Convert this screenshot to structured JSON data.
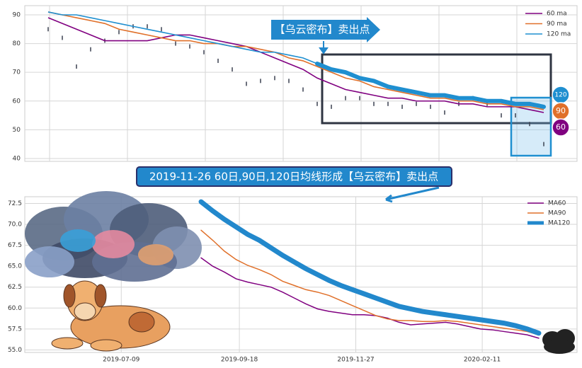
{
  "chart_data": [
    {
      "type": "line",
      "values": [
        85,
        82,
        72,
        78,
        81,
        84,
        86,
        86,
        85,
        80,
        79,
        77,
        74,
        71,
        66,
        67,
        68,
        67,
        64,
        59,
        58,
        61,
        61,
        59,
        59,
        58,
        59,
        58,
        56,
        59,
        61,
        59,
        55,
        55,
        52,
        45
      ],
      "color": "#3a4150",
      "series": [
        {
          "name": "60 ma",
          "color": "#800080",
          "values": [
            89,
            87,
            85,
            83,
            81,
            81,
            81,
            81,
            82,
            83,
            83,
            82,
            81,
            80,
            79,
            77,
            75,
            73,
            71,
            68,
            66,
            64,
            63,
            62,
            61,
            61,
            60,
            60,
            60,
            59,
            59,
            58,
            58,
            58,
            57,
            56
          ]
        },
        {
          "name": "90 ma",
          "color": "#e0702a",
          "values": [
            91,
            90,
            89,
            88,
            87,
            85,
            84,
            83,
            82,
            81,
            81,
            80,
            80,
            79,
            79,
            78,
            77,
            75,
            74,
            72,
            70,
            68,
            67,
            65,
            64,
            63,
            62,
            61,
            61,
            60,
            60,
            59,
            59,
            58,
            58,
            57
          ]
        },
        {
          "name": "120 ma",
          "color": "#1f8fd0",
          "values": [
            91,
            90,
            90,
            89,
            88,
            87,
            86,
            85,
            84,
            83,
            82,
            81,
            80,
            79,
            78,
            77,
            77,
            76,
            75,
            73,
            71,
            70,
            68,
            67,
            65,
            64,
            63,
            62,
            62,
            61,
            61,
            60,
            60,
            59,
            59,
            58
          ]
        }
      ],
      "ylim": [
        39,
        93.2
      ],
      "yticks": [
        40,
        50,
        60,
        70,
        80,
        90
      ],
      "grid": true,
      "legend": "upper right",
      "annotations": {
        "banner": "【乌云密布】卖出点",
        "markers": [
          "120",
          "90",
          "60"
        ]
      }
    },
    {
      "type": "line",
      "x": [
        "2019-08-26",
        "2019-09-02",
        "2019-09-09",
        "2019-09-16",
        "2019-09-23",
        "2019-09-30",
        "2019-10-07",
        "2019-10-14",
        "2019-10-21",
        "2019-10-28",
        "2019-11-04",
        "2019-11-11",
        "2019-11-18",
        "2019-11-25",
        "2019-12-02",
        "2019-12-09",
        "2019-12-16",
        "2019-12-23",
        "2019-12-30",
        "2020-01-06",
        "2020-01-13",
        "2020-01-20",
        "2020-01-27",
        "2020-02-03",
        "2020-02-10",
        "2020-02-17",
        "2020-02-24",
        "2020-03-02",
        "2020-03-09",
        "2020-03-16"
      ],
      "series": [
        {
          "name": "MA60",
          "color": "#800080",
          "width": 1.5,
          "values": [
            66.0,
            65.0,
            64.3,
            63.5,
            63.1,
            62.8,
            62.5,
            61.9,
            61.2,
            60.5,
            59.9,
            59.6,
            59.4,
            59.2,
            59.2,
            59.1,
            58.8,
            58.3,
            58.0,
            58.1,
            58.2,
            58.3,
            58.1,
            57.8,
            57.5,
            57.4,
            57.2,
            57.0,
            56.8,
            56.4
          ]
        },
        {
          "name": "MA90",
          "color": "#e0702a",
          "width": 1.5,
          "values": [
            69.3,
            68.1,
            66.8,
            65.8,
            65.1,
            64.6,
            64.0,
            63.2,
            62.7,
            62.2,
            61.9,
            61.5,
            60.9,
            60.3,
            59.7,
            59.1,
            58.7,
            58.5,
            58.5,
            58.4,
            58.4,
            58.5,
            58.4,
            58.2,
            58.0,
            57.8,
            57.6,
            57.4,
            57.2,
            56.8
          ]
        },
        {
          "name": "MA120",
          "color": "#2288cc",
          "width": 7,
          "values": [
            72.7,
            71.6,
            70.6,
            69.7,
            68.8,
            68.1,
            67.2,
            66.3,
            65.5,
            64.7,
            64.0,
            63.3,
            62.7,
            62.2,
            61.7,
            61.2,
            60.7,
            60.2,
            59.9,
            59.6,
            59.4,
            59.2,
            59.0,
            58.8,
            58.6,
            58.4,
            58.2,
            57.9,
            57.5,
            57.0
          ]
        }
      ],
      "xlim": [
        "2019-05-12",
        "2020-04-08"
      ],
      "xticks": [
        "2019-07-09",
        "2019-09-18",
        "2019-11-27",
        "2020-02-11"
      ],
      "ylim": [
        54.7,
        73.3
      ],
      "yticks": [
        {
          "value": 55,
          "label": "55.0"
        },
        57.5,
        {
          "value": 60,
          "label": "60.0"
        },
        62.5,
        {
          "value": 65,
          "label": "65.0"
        },
        67.5,
        {
          "value": 70,
          "label": "70.0"
        },
        72.5
      ],
      "grid": true,
      "legend": "upper right",
      "annotation": "2019-11-26 60日,90日,120日均线形成【乌云密布】卖出点"
    }
  ]
}
